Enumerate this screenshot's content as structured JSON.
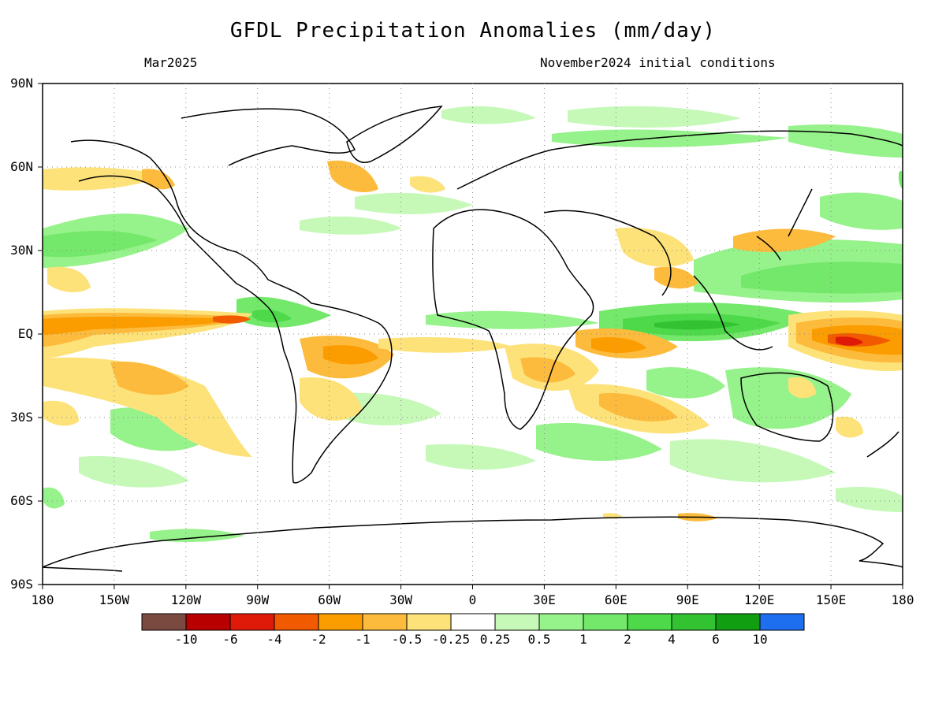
{
  "title": "GFDL Precipitation Anomalies (mm/day)",
  "valid_month": "Mar2025",
  "initial_conditions": "November2024 initial conditions",
  "lat_labels": [
    "90N",
    "60N",
    "30N",
    "EQ",
    "30S",
    "60S",
    "90S"
  ],
  "lon_labels": [
    "180",
    "150W",
    "120W",
    "90W",
    "60W",
    "30W",
    "0",
    "30E",
    "60E",
    "90E",
    "120E",
    "150E",
    "180"
  ],
  "colorbar": {
    "labels": [
      "-10",
      "-6",
      "-4",
      "-2",
      "-1",
      "-0.5",
      "-0.25",
      "0.25",
      "0.5",
      "1",
      "2",
      "4",
      "6",
      "10"
    ],
    "colors": [
      "#7a4a40",
      "#b80000",
      "#e01a08",
      "#f25a00",
      "#fb9c00",
      "#fcbb3c",
      "#fde27a",
      "#ffffff",
      "#c6f9b8",
      "#96f28a",
      "#74e86a",
      "#4ed94a",
      "#32c232",
      "#119e11",
      "#1e6ef0"
    ]
  }
}
